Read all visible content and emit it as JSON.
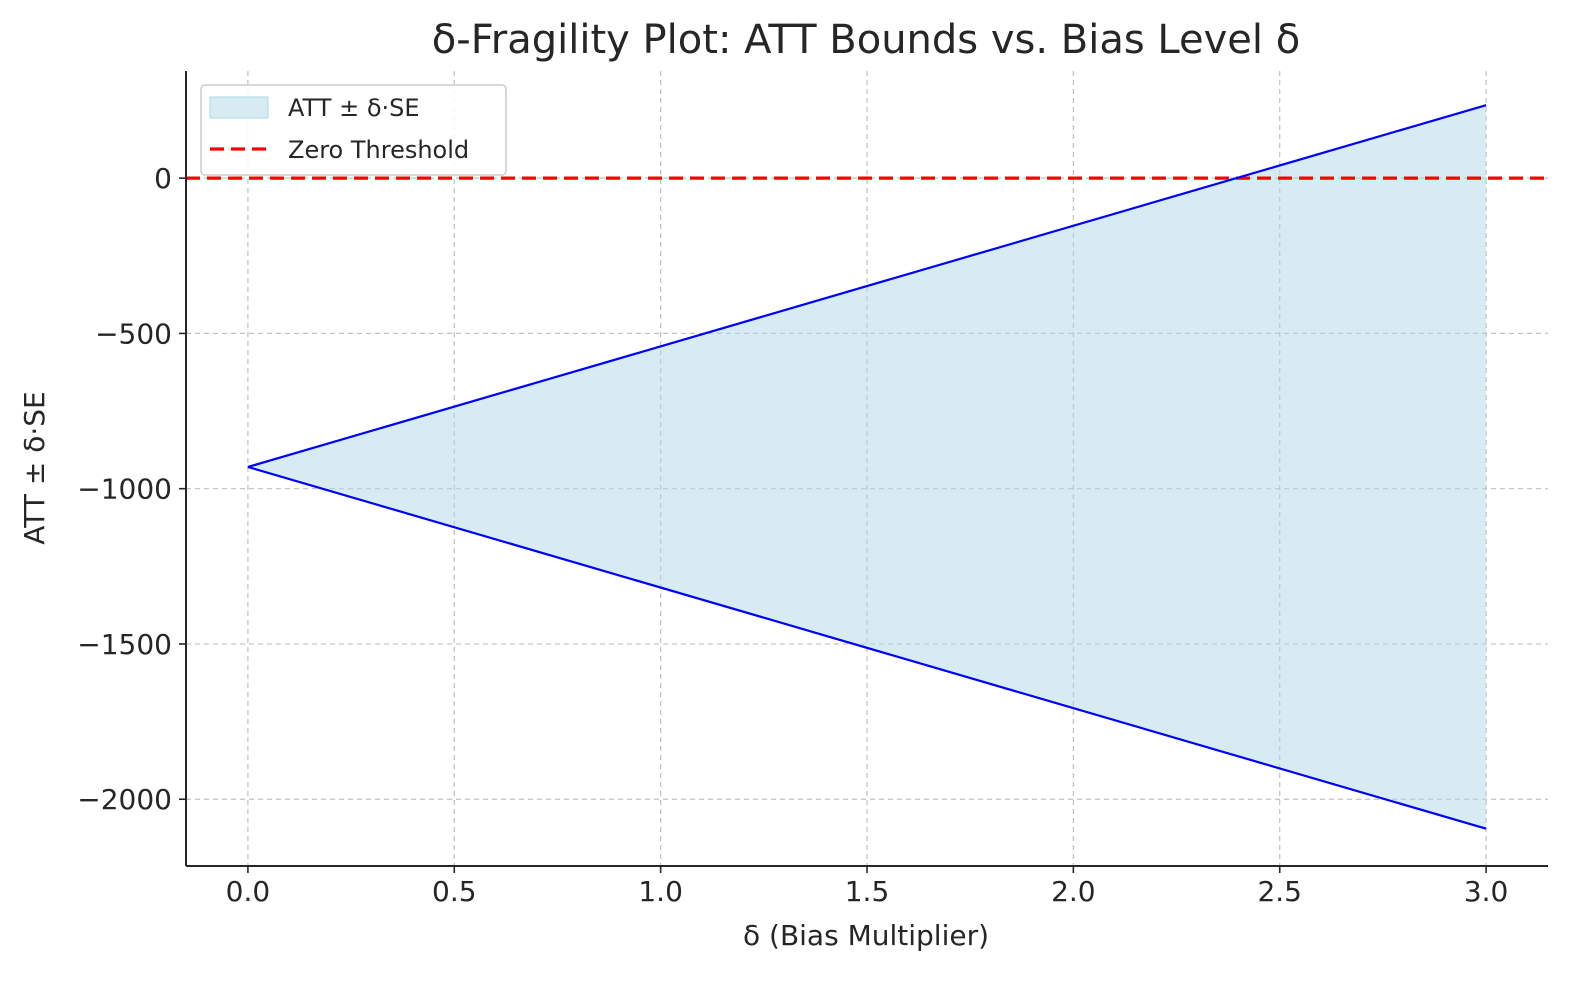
{
  "chart_data": {
    "type": "area",
    "title": "δ-Fragility Plot: ATT Bounds vs. Bias Level δ",
    "xlabel": "δ (Bias Multiplier)",
    "ylabel": "ATT ± δ·SE",
    "xlim": [
      -0.15,
      3.15
    ],
    "ylim": [
      -2215,
      345
    ],
    "x_ticks": [
      0.0,
      0.5,
      1.0,
      1.5,
      2.0,
      2.5,
      3.0
    ],
    "x_tick_labels": [
      "0.0",
      "0.5",
      "1.0",
      "1.5",
      "2.0",
      "2.5",
      "3.0"
    ],
    "y_ticks": [
      -2000,
      -1500,
      -1000,
      -500,
      0
    ],
    "y_tick_labels": [
      "−2000",
      "−1500",
      "−1000",
      "−500",
      "0"
    ],
    "grid": true,
    "legend_position": "top-left",
    "band": {
      "name": "ATT ± δ·SE",
      "fill_color": "#add8e6",
      "fill_opacity": 0.5,
      "line_color": "#0000ff",
      "x": [
        0.0,
        3.0
      ],
      "lower": [
        -930,
        -2095
      ],
      "upper": [
        -930,
        235
      ]
    },
    "threshold": {
      "name": "Zero Threshold",
      "y": 0,
      "color": "#ff0000",
      "style": "dashed"
    }
  }
}
